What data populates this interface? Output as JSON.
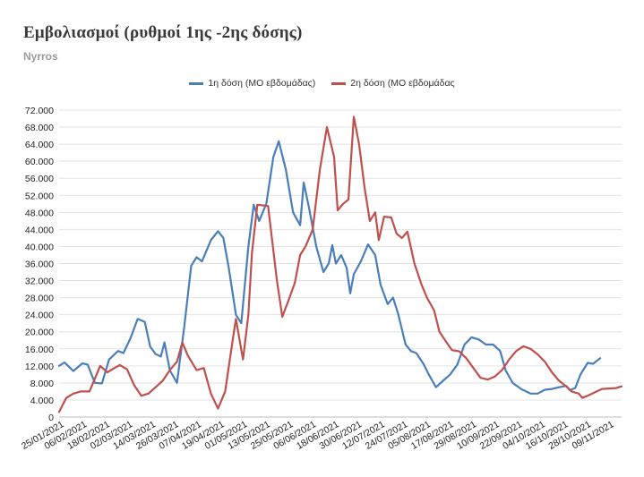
{
  "header": {
    "title": "Εμβολιασμοί (ρυθμοί 1ης -2ης δόσης)",
    "subtitle": "Nyrros"
  },
  "chart_data": {
    "type": "line",
    "y_ticks": [
      "0",
      "4.000",
      "8.000",
      "12.000",
      "16.000",
      "20.000",
      "24.000",
      "28.000",
      "32.000",
      "36.000",
      "40.000",
      "44.000",
      "48.000",
      "52.000",
      "56.000",
      "60.000",
      "64.000",
      "68.000",
      "72.000"
    ],
    "ylim": [
      0,
      72000
    ],
    "x_tick_labels": [
      "25/01/2021",
      "06/02/2021",
      "18/02/2021",
      "02/03/2021",
      "14/03/2021",
      "26/03/2021",
      "07/04/2021",
      "19/04/2021",
      "01/05/2021",
      "13/05/2021",
      "25/05/2021",
      "06/06/2021",
      "18/06/2021",
      "30/06/2021",
      "12/07/2021",
      "24/07/2021",
      "05/08/2021",
      "17/08/2021",
      "29/08/2021",
      "10/09/2021",
      "22/09/2021",
      "04/10/2021",
      "16/10/2021",
      "28/10/2021",
      "09/11/2021"
    ],
    "x_start": "2021-01-25",
    "x_end": "2021-11-18",
    "grid": "horizontal",
    "legend_position": "top",
    "series": [
      {
        "name": "1η δόση (ΜΟ εβδομάδας)",
        "color": "#4a7ebb",
        "points": [
          [
            "2021-01-25",
            12000
          ],
          [
            "2021-01-28",
            12800
          ],
          [
            "2021-02-02",
            10800
          ],
          [
            "2021-02-07",
            12600
          ],
          [
            "2021-02-10",
            12300
          ],
          [
            "2021-02-14",
            8000
          ],
          [
            "2021-02-18",
            7900
          ],
          [
            "2021-02-22",
            13500
          ],
          [
            "2021-02-27",
            15500
          ],
          [
            "2021-03-02",
            15000
          ],
          [
            "2021-03-06",
            18500
          ],
          [
            "2021-03-10",
            23000
          ],
          [
            "2021-03-14",
            22300
          ],
          [
            "2021-03-17",
            16500
          ],
          [
            "2021-03-20",
            14800
          ],
          [
            "2021-03-23",
            14200
          ],
          [
            "2021-03-25",
            17500
          ],
          [
            "2021-03-28",
            11000
          ],
          [
            "2021-04-01",
            8000
          ],
          [
            "2021-04-05",
            21000
          ],
          [
            "2021-04-09",
            35500
          ],
          [
            "2021-04-12",
            37500
          ],
          [
            "2021-04-15",
            36500
          ],
          [
            "2021-04-20",
            41500
          ],
          [
            "2021-04-24",
            43600
          ],
          [
            "2021-04-27",
            42000
          ],
          [
            "2021-04-30",
            35000
          ],
          [
            "2021-05-04",
            24000
          ],
          [
            "2021-05-07",
            22000
          ],
          [
            "2021-05-11",
            40000
          ],
          [
            "2021-05-14",
            49800
          ],
          [
            "2021-05-17",
            46000
          ],
          [
            "2021-05-21",
            50000
          ],
          [
            "2021-05-25",
            61000
          ],
          [
            "2021-05-28",
            64700
          ],
          [
            "2021-06-01",
            58000
          ],
          [
            "2021-06-05",
            48000
          ],
          [
            "2021-06-09",
            45000
          ],
          [
            "2021-06-11",
            55000
          ],
          [
            "2021-06-14",
            49000
          ],
          [
            "2021-06-18",
            40000
          ],
          [
            "2021-06-22",
            34000
          ],
          [
            "2021-06-25",
            36000
          ],
          [
            "2021-06-27",
            40300
          ],
          [
            "2021-06-29",
            36000
          ],
          [
            "2021-07-02",
            38000
          ],
          [
            "2021-07-05",
            35000
          ],
          [
            "2021-07-07",
            29000
          ],
          [
            "2021-07-09",
            33500
          ],
          [
            "2021-07-13",
            36500
          ],
          [
            "2021-07-17",
            40500
          ],
          [
            "2021-07-21",
            38000
          ],
          [
            "2021-07-24",
            31000
          ],
          [
            "2021-07-28",
            26500
          ],
          [
            "2021-07-31",
            28000
          ],
          [
            "2021-08-03",
            24000
          ],
          [
            "2021-08-07",
            17000
          ],
          [
            "2021-08-10",
            15500
          ],
          [
            "2021-08-13",
            15000
          ],
          [
            "2021-08-17",
            12500
          ],
          [
            "2021-08-20",
            10000
          ],
          [
            "2021-08-24",
            7000
          ],
          [
            "2021-08-28",
            8500
          ],
          [
            "2021-09-01",
            10000
          ],
          [
            "2021-09-05",
            12300
          ],
          [
            "2021-09-09",
            17000
          ],
          [
            "2021-09-13",
            18700
          ],
          [
            "2021-09-17",
            18200
          ],
          [
            "2021-09-21",
            17000
          ],
          [
            "2021-09-25",
            17000
          ],
          [
            "2021-09-29",
            15500
          ],
          [
            "2021-10-02",
            11000
          ],
          [
            "2021-10-06",
            8000
          ],
          [
            "2021-10-11",
            6500
          ],
          [
            "2021-10-16",
            5500
          ],
          [
            "2021-10-20",
            5500
          ],
          [
            "2021-10-24",
            6400
          ],
          [
            "2021-10-28",
            6600
          ],
          [
            "2021-11-01",
            7000
          ],
          [
            "2021-11-05",
            7300
          ],
          [
            "2021-11-07",
            6300
          ],
          [
            "2021-11-10",
            6800
          ],
          [
            "2021-11-13",
            10000
          ],
          [
            "2021-11-17",
            12700
          ],
          [
            "2021-11-20",
            12500
          ],
          [
            "2021-11-24",
            13800
          ]
        ]
      },
      {
        "name": "2η δόση (ΜΟ εβδομάδας",
        "color": "#c0504d",
        "points": [
          [
            "2021-01-25",
            1200
          ],
          [
            "2021-01-29",
            4500
          ],
          [
            "2021-02-02",
            5500
          ],
          [
            "2021-02-06",
            6000
          ],
          [
            "2021-02-11",
            6000
          ],
          [
            "2021-02-14",
            9000
          ],
          [
            "2021-02-17",
            12000
          ],
          [
            "2021-02-21",
            10500
          ],
          [
            "2021-02-25",
            11500
          ],
          [
            "2021-02-28",
            12200
          ],
          [
            "2021-03-04",
            11200
          ],
          [
            "2021-03-08",
            7500
          ],
          [
            "2021-03-12",
            5000
          ],
          [
            "2021-03-16",
            5500
          ],
          [
            "2021-03-20",
            7000
          ],
          [
            "2021-03-24",
            8500
          ],
          [
            "2021-03-28",
            11000
          ],
          [
            "2021-04-01",
            13000
          ],
          [
            "2021-04-04",
            17500
          ],
          [
            "2021-04-07",
            14500
          ],
          [
            "2021-04-12",
            11000
          ],
          [
            "2021-04-16",
            11500
          ],
          [
            "2021-04-20",
            5500
          ],
          [
            "2021-04-24",
            2000
          ],
          [
            "2021-04-28",
            6000
          ],
          [
            "2021-05-02",
            17500
          ],
          [
            "2021-05-04",
            23000
          ],
          [
            "2021-05-08",
            13500
          ],
          [
            "2021-05-11",
            24000
          ],
          [
            "2021-05-13",
            38500
          ],
          [
            "2021-05-16",
            49800
          ],
          [
            "2021-05-22",
            49500
          ],
          [
            "2021-05-27",
            32000
          ],
          [
            "2021-05-30",
            23500
          ],
          [
            "2021-06-03",
            28000
          ],
          [
            "2021-06-06",
            31500
          ],
          [
            "2021-06-09",
            38000
          ],
          [
            "2021-06-12",
            40000
          ],
          [
            "2021-06-16",
            44000
          ],
          [
            "2021-06-20",
            58000
          ],
          [
            "2021-06-24",
            68000
          ],
          [
            "2021-06-28",
            61000
          ],
          [
            "2021-06-30",
            48500
          ],
          [
            "2021-07-03",
            50000
          ],
          [
            "2021-07-06",
            51000
          ],
          [
            "2021-07-09",
            70400
          ],
          [
            "2021-07-12",
            64000
          ],
          [
            "2021-07-15",
            54000
          ],
          [
            "2021-07-18",
            46000
          ],
          [
            "2021-07-21",
            48000
          ],
          [
            "2021-07-23",
            41500
          ],
          [
            "2021-07-26",
            47000
          ],
          [
            "2021-07-30",
            46800
          ],
          [
            "2021-08-02",
            43000
          ],
          [
            "2021-08-05",
            42000
          ],
          [
            "2021-08-08",
            43500
          ],
          [
            "2021-08-12",
            36000
          ],
          [
            "2021-08-16",
            31000
          ],
          [
            "2021-08-19",
            28000
          ],
          [
            "2021-08-23",
            25000
          ],
          [
            "2021-08-26",
            20000
          ],
          [
            "2021-08-30",
            17500
          ],
          [
            "2021-09-02",
            15700
          ],
          [
            "2021-09-06",
            15400
          ],
          [
            "2021-09-10",
            13800
          ],
          [
            "2021-09-14",
            11500
          ],
          [
            "2021-09-18",
            9200
          ],
          [
            "2021-09-22",
            8800
          ],
          [
            "2021-09-26",
            9500
          ],
          [
            "2021-09-30",
            11000
          ],
          [
            "2021-10-04",
            13500
          ],
          [
            "2021-10-08",
            15500
          ],
          [
            "2021-10-12",
            16600
          ],
          [
            "2021-10-16",
            16000
          ],
          [
            "2021-10-20",
            14700
          ],
          [
            "2021-10-24",
            13000
          ],
          [
            "2021-10-28",
            10500
          ],
          [
            "2021-11-01",
            8500
          ],
          [
            "2021-11-05",
            7200
          ],
          [
            "2021-11-08",
            6000
          ],
          [
            "2021-11-12",
            5500
          ],
          [
            "2021-11-14",
            4500
          ],
          [
            "2021-11-17",
            5000
          ],
          [
            "2021-11-21",
            5800
          ],
          [
            "2021-11-25",
            6600
          ],
          [
            "2021-11-29",
            6700
          ],
          [
            "2021-12-03",
            6800
          ],
          [
            "2021-12-06",
            7200
          ]
        ]
      }
    ]
  }
}
